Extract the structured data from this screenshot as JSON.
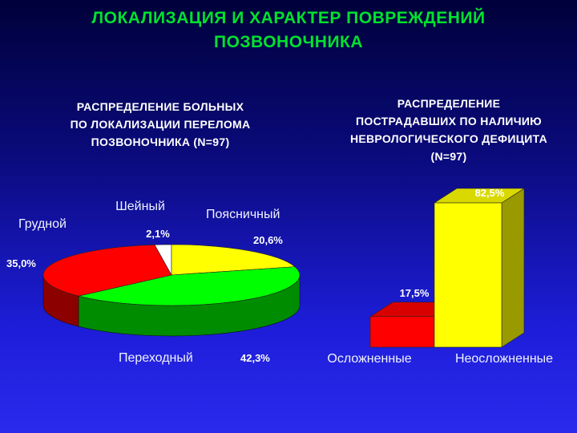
{
  "title_line1": "ЛОКАЛИЗАЦИЯ И ХАРАКТЕР ПОВРЕЖДЕНИЙ",
  "title_line2": "ПОЗВОНОЧНИКА",
  "left_subtitle": [
    "РАСПРЕДЕЛЕНИЕ БОЛЬНЫХ",
    "ПО ЛОКАЛИЗАЦИИ ПЕРЕЛОМА",
    "ПОЗВОНОЧНИКА (N=97)"
  ],
  "right_subtitle": [
    "РАСПРЕДЕЛЕНИЕ",
    "ПОСТРАДАВШИХ ПО НАЛИЧИЮ",
    "НЕВРОЛОГИЧЕСКОГО ДЕФИЦИТА",
    "(N=97)"
  ],
  "chart_data": [
    {
      "type": "pie",
      "title": "РАСПРЕДЕЛЕНИЕ БОЛЬНЫХ ПО ЛОКАЛИЗАЦИИ ПЕРЕЛОМА ПОЗВОНОЧНИКА (N=97)",
      "slices": [
        {
          "label": "Шейный",
          "value": 2.1,
          "value_label": "2,1%",
          "color": "#ffffff"
        },
        {
          "label": "Поясничный",
          "value": 20.6,
          "value_label": "20,6%",
          "color": "#ffff00"
        },
        {
          "label": "Переходный",
          "value": 42.3,
          "value_label": "42,3%",
          "color": "#00ff00"
        },
        {
          "label": "Грудной",
          "value": 35.0,
          "value_label": "35,0%",
          "color": "#ff0000"
        }
      ]
    },
    {
      "type": "bar",
      "title": "РАСПРЕДЕЛЕНИЕ ПОСТРАДАВШИХ ПО НАЛИЧИЮ НЕВРОЛОГИЧЕСКОГО ДЕФИЦИТА (N=97)",
      "categories": [
        "Осложненные",
        "Неосложненные"
      ],
      "values": [
        17.5,
        82.5
      ],
      "value_labels": [
        "17,5%",
        "82,5%"
      ],
      "colors": [
        "#ff0000",
        "#ffff00"
      ]
    }
  ]
}
